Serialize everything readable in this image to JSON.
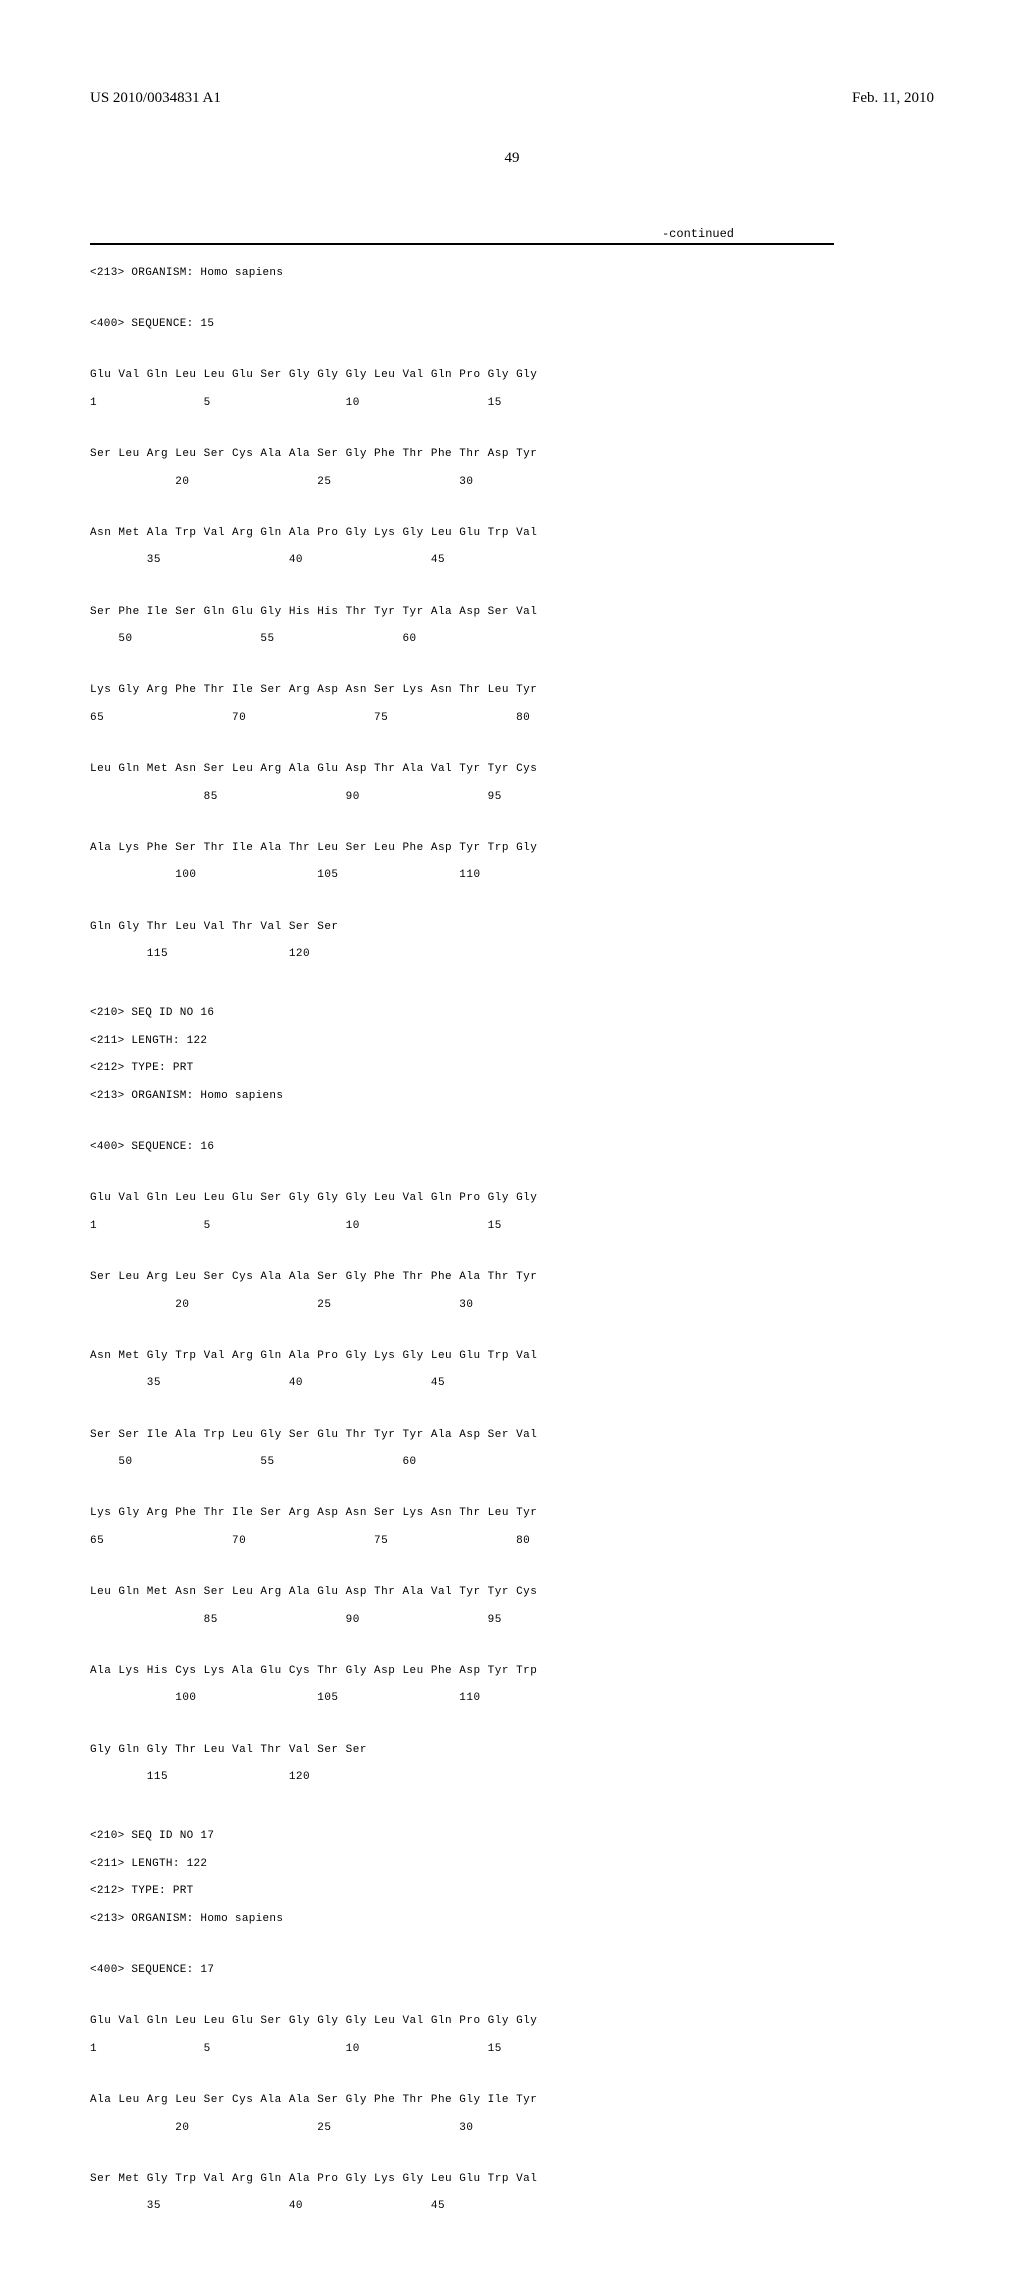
{
  "header": {
    "publication": "US 2010/0034831 A1",
    "date": "Feb. 11, 2010",
    "page_number": "49",
    "continued": "-continued"
  },
  "seq15": {
    "organism_line": "<213> ORGANISM: Homo sapiens",
    "sequence_line": "<400> SEQUENCE: 15",
    "rows": [
      {
        "aa": "Glu Val Gln Leu Leu Glu Ser Gly Gly Gly Leu Val Gln Pro Gly Gly",
        "nm": "1               5                   10                  15"
      },
      {
        "aa": "Ser Leu Arg Leu Ser Cys Ala Ala Ser Gly Phe Thr Phe Thr Asp Tyr",
        "nm": "            20                  25                  30"
      },
      {
        "aa": "Asn Met Ala Trp Val Arg Gln Ala Pro Gly Lys Gly Leu Glu Trp Val",
        "nm": "        35                  40                  45"
      },
      {
        "aa": "Ser Phe Ile Ser Gln Glu Gly His His Thr Tyr Tyr Ala Asp Ser Val",
        "nm": "    50                  55                  60"
      },
      {
        "aa": "Lys Gly Arg Phe Thr Ile Ser Arg Asp Asn Ser Lys Asn Thr Leu Tyr",
        "nm": "65                  70                  75                  80"
      },
      {
        "aa": "Leu Gln Met Asn Ser Leu Arg Ala Glu Asp Thr Ala Val Tyr Tyr Cys",
        "nm": "                85                  90                  95"
      },
      {
        "aa": "Ala Lys Phe Ser Thr Ile Ala Thr Leu Ser Leu Phe Asp Tyr Trp Gly",
        "nm": "            100                 105                 110"
      },
      {
        "aa": "Gln Gly Thr Leu Val Thr Val Ser Ser",
        "nm": "        115                 120"
      }
    ]
  },
  "seq16": {
    "id_line": "<210> SEQ ID NO 16",
    "length_line": "<211> LENGTH: 122",
    "type_line": "<212> TYPE: PRT",
    "organism_line": "<213> ORGANISM: Homo sapiens",
    "sequence_line": "<400> SEQUENCE: 16",
    "rows": [
      {
        "aa": "Glu Val Gln Leu Leu Glu Ser Gly Gly Gly Leu Val Gln Pro Gly Gly",
        "nm": "1               5                   10                  15"
      },
      {
        "aa": "Ser Leu Arg Leu Ser Cys Ala Ala Ser Gly Phe Thr Phe Ala Thr Tyr",
        "nm": "            20                  25                  30"
      },
      {
        "aa": "Asn Met Gly Trp Val Arg Gln Ala Pro Gly Lys Gly Leu Glu Trp Val",
        "nm": "        35                  40                  45"
      },
      {
        "aa": "Ser Ser Ile Ala Trp Leu Gly Ser Glu Thr Tyr Tyr Ala Asp Ser Val",
        "nm": "    50                  55                  60"
      },
      {
        "aa": "Lys Gly Arg Phe Thr Ile Ser Arg Asp Asn Ser Lys Asn Thr Leu Tyr",
        "nm": "65                  70                  75                  80"
      },
      {
        "aa": "Leu Gln Met Asn Ser Leu Arg Ala Glu Asp Thr Ala Val Tyr Tyr Cys",
        "nm": "                85                  90                  95"
      },
      {
        "aa": "Ala Lys His Cys Lys Ala Glu Cys Thr Gly Asp Leu Phe Asp Tyr Trp",
        "nm": "            100                 105                 110"
      },
      {
        "aa": "Gly Gln Gly Thr Leu Val Thr Val Ser Ser",
        "nm": "        115                 120"
      }
    ]
  },
  "seq17": {
    "id_line": "<210> SEQ ID NO 17",
    "length_line": "<211> LENGTH: 122",
    "type_line": "<212> TYPE: PRT",
    "organism_line": "<213> ORGANISM: Homo sapiens",
    "sequence_line": "<400> SEQUENCE: 17",
    "rows": [
      {
        "aa": "Glu Val Gln Leu Leu Glu Ser Gly Gly Gly Leu Val Gln Pro Gly Gly",
        "nm": "1               5                   10                  15"
      },
      {
        "aa": "Ala Leu Arg Leu Ser Cys Ala Ala Ser Gly Phe Thr Phe Gly Ile Tyr",
        "nm": "            20                  25                  30"
      },
      {
        "aa": "Ser Met Gly Trp Val Arg Gln Ala Pro Gly Lys Gly Leu Glu Trp Val",
        "nm": "        35                  40                  45"
      }
    ]
  }
}
